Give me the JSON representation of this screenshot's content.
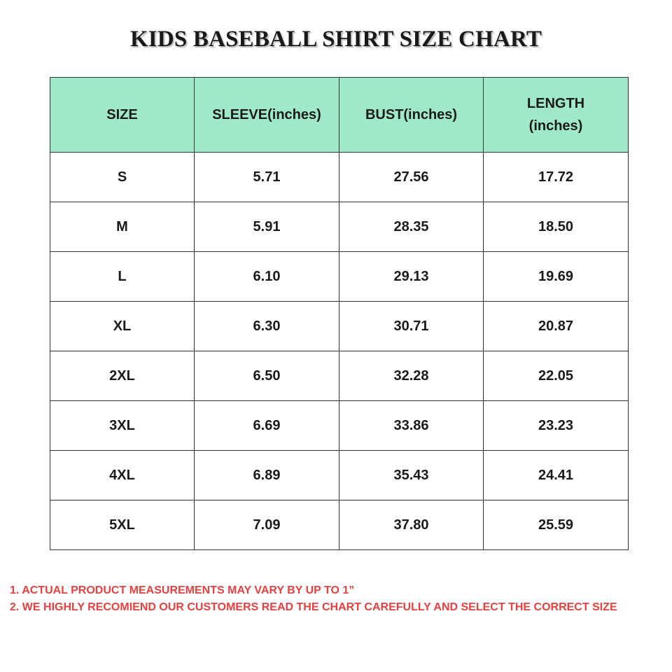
{
  "title": "KIDS BASEBALL SHIRT SIZE CHART",
  "table": {
    "headers": [
      "SIZE",
      "SLEEVE(inches)",
      "BUST(inches)",
      "LENGTH (inches)"
    ],
    "rows": [
      [
        "S",
        "5.71",
        "27.56",
        "17.72"
      ],
      [
        "M",
        "5.91",
        "28.35",
        "18.50"
      ],
      [
        "L",
        "6.10",
        "29.13",
        "19.69"
      ],
      [
        "XL",
        "6.30",
        "30.71",
        "20.87"
      ],
      [
        "2XL",
        "6.50",
        "32.28",
        "22.05"
      ],
      [
        "3XL",
        "6.69",
        "33.86",
        "23.23"
      ],
      [
        "4XL",
        "6.89",
        "35.43",
        "24.41"
      ],
      [
        "5XL",
        "7.09",
        "37.80",
        "25.59"
      ]
    ]
  },
  "notes": [
    "1. ACTUAL PRODUCT MEASUREMENTS MAY VARY BY UP TO 1”",
    "2. WE HIGHLY RECOMIEND OUR CUSTOMERS READ THE CHART CAREFULLY AND SELECT THE CORRECT SIZE"
  ],
  "colors": {
    "header_bg": "#9fe9c9",
    "notes_text": "#e8403f",
    "border": "#333333"
  }
}
